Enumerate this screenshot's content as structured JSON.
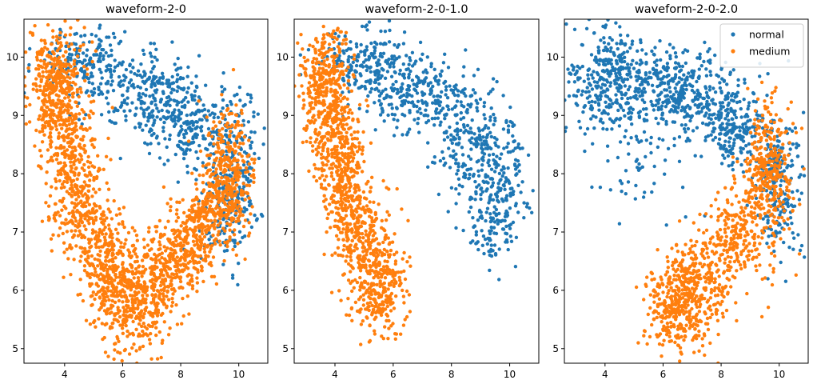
{
  "figure": {
    "background": "#ffffff",
    "colors": {
      "normal": "#1f77b4",
      "medium": "#ff7f0e"
    }
  },
  "chart_data": [
    {
      "type": "scatter",
      "title": "waveform-2-0",
      "xlim": [
        2.6,
        11.0
      ],
      "ylim": [
        4.75,
        10.65
      ],
      "xticks": [
        4,
        6,
        8,
        10
      ],
      "yticks": [
        5,
        6,
        7,
        8,
        9,
        10
      ],
      "legend": false,
      "series": [
        {
          "key": "normal",
          "color": "#1f77b4",
          "count": 900,
          "regions": [
            {
              "cx": 4.7,
              "cy": 9.95,
              "sx": 0.9,
              "sy": 0.32,
              "w": 0.24
            },
            {
              "cx": 6.9,
              "cy": 9.35,
              "sx": 0.95,
              "sy": 0.38,
              "w": 0.32
            },
            {
              "cx": 8.4,
              "cy": 8.75,
              "sx": 0.55,
              "sy": 0.35,
              "w": 0.16
            },
            {
              "cx": 9.8,
              "cy": 8.05,
              "sx": 0.45,
              "sy": 0.6,
              "w": 0.22
            },
            {
              "cx": 9.6,
              "cy": 7.2,
              "sx": 0.45,
              "sy": 0.4,
              "w": 0.06
            }
          ]
        },
        {
          "key": "medium",
          "color": "#ff7f0e",
          "count": 2400,
          "regions": [
            {
              "cx": 3.7,
              "cy": 9.5,
              "sx": 0.45,
              "sy": 0.55,
              "w": 0.16
            },
            {
              "cx": 4.2,
              "cy": 8.3,
              "sx": 0.45,
              "sy": 0.5,
              "w": 0.08
            },
            {
              "cx": 4.6,
              "cy": 7.4,
              "sx": 0.45,
              "sy": 0.45,
              "w": 0.08
            },
            {
              "cx": 5.3,
              "cy": 6.6,
              "sx": 0.5,
              "sy": 0.4,
              "w": 0.09
            },
            {
              "cx": 6.3,
              "cy": 5.9,
              "sx": 0.65,
              "sy": 0.45,
              "w": 0.22
            },
            {
              "cx": 7.6,
              "cy": 6.4,
              "sx": 0.5,
              "sy": 0.35,
              "w": 0.09
            },
            {
              "cx": 8.6,
              "cy": 7.0,
              "sx": 0.45,
              "sy": 0.4,
              "w": 0.09
            },
            {
              "cx": 9.6,
              "cy": 7.9,
              "sx": 0.42,
              "sy": 0.55,
              "w": 0.19
            }
          ]
        }
      ]
    },
    {
      "type": "scatter",
      "title": "waveform-2-0-1.0",
      "xlim": [
        2.6,
        11.0
      ],
      "ylim": [
        4.75,
        10.65
      ],
      "xticks": [
        4,
        6,
        8,
        10
      ],
      "yticks": [
        5,
        6,
        7,
        8,
        9,
        10
      ],
      "legend": false,
      "series": [
        {
          "key": "normal",
          "color": "#1f77b4",
          "count": 900,
          "regions": [
            {
              "cx": 4.9,
              "cy": 9.9,
              "sx": 0.8,
              "sy": 0.3,
              "w": 0.22
            },
            {
              "cx": 6.8,
              "cy": 9.35,
              "sx": 0.9,
              "sy": 0.35,
              "w": 0.3
            },
            {
              "cx": 8.6,
              "cy": 8.6,
              "sx": 0.6,
              "sy": 0.45,
              "w": 0.2
            },
            {
              "cx": 9.7,
              "cy": 7.9,
              "sx": 0.5,
              "sy": 0.6,
              "w": 0.2
            },
            {
              "cx": 9.4,
              "cy": 7.1,
              "sx": 0.5,
              "sy": 0.35,
              "w": 0.08
            }
          ]
        },
        {
          "key": "medium",
          "color": "#ff7f0e",
          "count": 1300,
          "regions": [
            {
              "cx": 3.7,
              "cy": 9.5,
              "sx": 0.4,
              "sy": 0.55,
              "w": 0.3
            },
            {
              "cx": 4.2,
              "cy": 8.2,
              "sx": 0.4,
              "sy": 0.5,
              "w": 0.22
            },
            {
              "cx": 4.8,
              "cy": 7.1,
              "sx": 0.45,
              "sy": 0.45,
              "w": 0.22
            },
            {
              "cx": 5.5,
              "cy": 6.1,
              "sx": 0.5,
              "sy": 0.45,
              "w": 0.26
            }
          ]
        }
      ]
    },
    {
      "type": "scatter",
      "title": "waveform-2-0-2.0",
      "xlim": [
        2.6,
        11.0
      ],
      "ylim": [
        4.75,
        10.65
      ],
      "xticks": [
        4,
        6,
        8,
        10
      ],
      "yticks": [
        5,
        6,
        7,
        8,
        9,
        10
      ],
      "legend": true,
      "legend_position": "upper right",
      "series": [
        {
          "key": "normal",
          "name": "normal",
          "color": "#1f77b4",
          "count": 1200,
          "regions": [
            {
              "cx": 4.2,
              "cy": 9.6,
              "sx": 0.75,
              "sy": 0.45,
              "w": 0.3
            },
            {
              "cx": 6.5,
              "cy": 9.4,
              "sx": 0.9,
              "sy": 0.35,
              "w": 0.3
            },
            {
              "cx": 8.4,
              "cy": 8.8,
              "sx": 0.55,
              "sy": 0.35,
              "w": 0.15
            },
            {
              "cx": 9.9,
              "cy": 7.9,
              "sx": 0.4,
              "sy": 0.6,
              "w": 0.2
            },
            {
              "cx": 5.0,
              "cy": 8.3,
              "sx": 0.9,
              "sy": 0.5,
              "w": 0.05
            }
          ]
        },
        {
          "key": "medium",
          "name": "medium",
          "color": "#ff7f0e",
          "count": 1100,
          "regions": [
            {
              "cx": 9.6,
              "cy": 7.9,
              "sx": 0.4,
              "sy": 0.6,
              "w": 0.32
            },
            {
              "cx": 8.5,
              "cy": 6.9,
              "sx": 0.5,
              "sy": 0.4,
              "w": 0.2
            },
            {
              "cx": 7.3,
              "cy": 6.2,
              "sx": 0.55,
              "sy": 0.4,
              "w": 0.2
            },
            {
              "cx": 6.5,
              "cy": 5.7,
              "sx": 0.55,
              "sy": 0.4,
              "w": 0.28
            }
          ]
        }
      ]
    }
  ]
}
